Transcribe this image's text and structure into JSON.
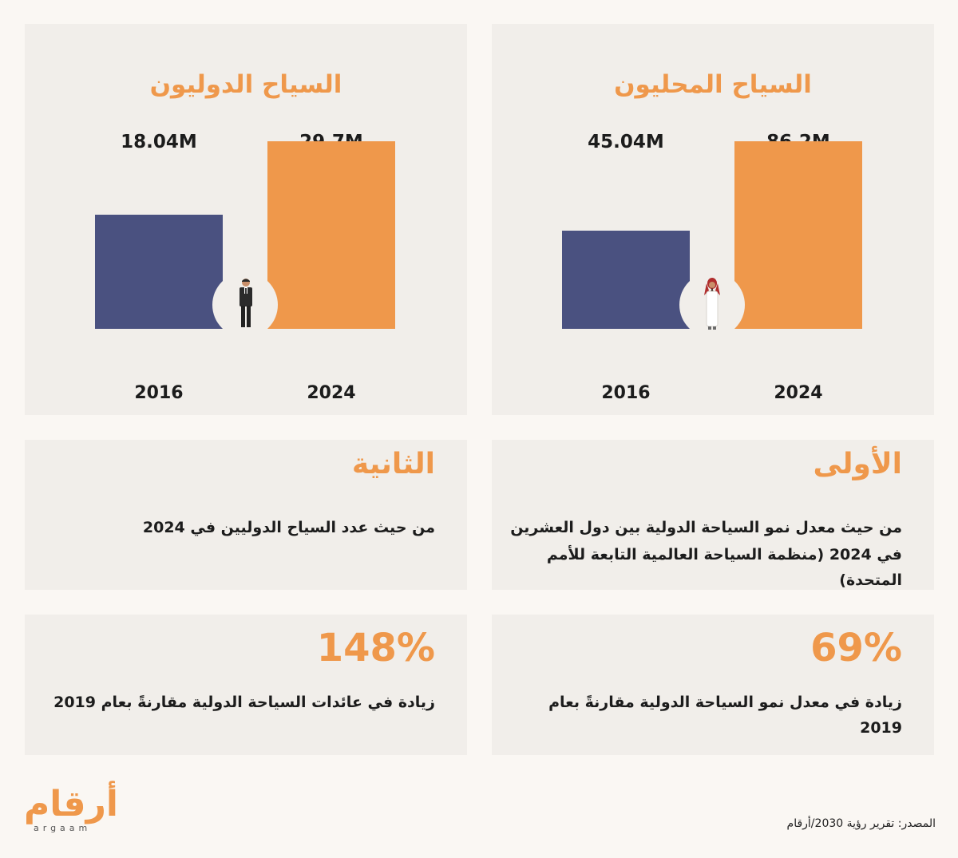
{
  "colors": {
    "accent": "#ef984b",
    "bar_2016": "#4a5180",
    "page": "#faf7f3",
    "panel": "#f1eeea",
    "text": "#1c1c1c"
  },
  "chart_data": [
    {
      "type": "bar",
      "title": "السياح المحليون",
      "categories": [
        "2016",
        "2024"
      ],
      "values": [
        45.04,
        86.2
      ],
      "value_labels": [
        "45.04M",
        "86.2M"
      ],
      "unit": "M",
      "icon": "saudi-man-figure-icon"
    },
    {
      "type": "bar",
      "title": "السياح الدوليون",
      "categories": [
        "2016",
        "2024"
      ],
      "values": [
        18.04,
        29.7
      ],
      "value_labels": [
        "18.04M",
        "29.7M"
      ],
      "unit": "M",
      "icon": "businessman-figure-icon"
    }
  ],
  "stats": {
    "first": {
      "head": "الأولى",
      "line1": "من حيث معدل نمو السياحة الدولية بين دول العشرين",
      "line2": "في 2024 (منظمة السياحة العالمية التابعة للأمم المتحدة)"
    },
    "second": {
      "head": "الثانية",
      "line1": "من حيث عدد السياح الدوليين في 2024"
    },
    "growth": {
      "value": "69%",
      "text": "زيادة في معدل نمو السياحة الدولية مقارنةً بعام 2019"
    },
    "revenue": {
      "value": "148%",
      "text": "زيادة في عائدات السياحة الدولية مقارنةً بعام 2019"
    }
  },
  "footer": {
    "logo_ar": "أرقام",
    "logo_en": "argaam",
    "source": "المصدر: تقرير رؤية 2030/أرقام"
  }
}
